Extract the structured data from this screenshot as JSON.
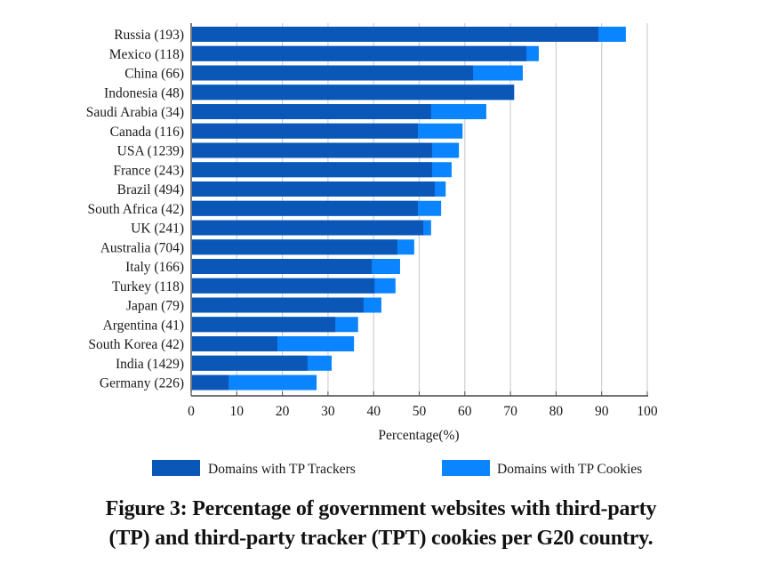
{
  "chart_data": {
    "type": "bar",
    "orientation": "horizontal",
    "stacked": false,
    "overlay": true,
    "categories": [
      "Russia (193)",
      "Mexico (118)",
      "China (66)",
      "Indonesia (48)",
      "Saudi Arabia (34)",
      "Canada (116)",
      "USA (1239)",
      "France (243)",
      "Brazil (494)",
      "South Africa (42)",
      "UK (241)",
      "Australia (704)",
      "Italy (166)",
      "Turkey (118)",
      "Japan (79)",
      "Argentina (41)",
      "South Korea (42)",
      "India (1429)",
      "Germany (226)"
    ],
    "series": [
      {
        "name": "Domains with TP Cookies",
        "color": "#0a84ff",
        "values": [
          95.3,
          76.2,
          72.7,
          70.8,
          64.7,
          59.5,
          58.7,
          57.1,
          55.8,
          54.8,
          52.6,
          48.9,
          45.8,
          44.8,
          41.7,
          36.6,
          35.7,
          30.8,
          27.5
        ]
      },
      {
        "name": "Domains with TP Trackers",
        "color": "#0a57b8",
        "values": [
          89.3,
          73.5,
          61.8,
          70.8,
          52.6,
          49.7,
          52.8,
          52.8,
          53.4,
          49.7,
          50.9,
          45.2,
          39.6,
          40.2,
          37.8,
          31.6,
          18.9,
          25.5,
          8.2
        ]
      }
    ],
    "xlabel": "Percentage(%)",
    "ylabel": "",
    "xlim": [
      0,
      100
    ],
    "xticks": [
      "0",
      "10",
      "20",
      "30",
      "40",
      "50",
      "60",
      "70",
      "80",
      "90",
      "100"
    ],
    "grid": true,
    "legend": {
      "placement": "bottom",
      "entries": [
        "Domains with TP Trackers",
        "Domains with TP Cookies"
      ]
    }
  },
  "caption": {
    "line1": "Figure 3: Percentage of government websites with third-party",
    "line2": "(TP) and third-party tracker (TPT) cookies per G20 country."
  }
}
